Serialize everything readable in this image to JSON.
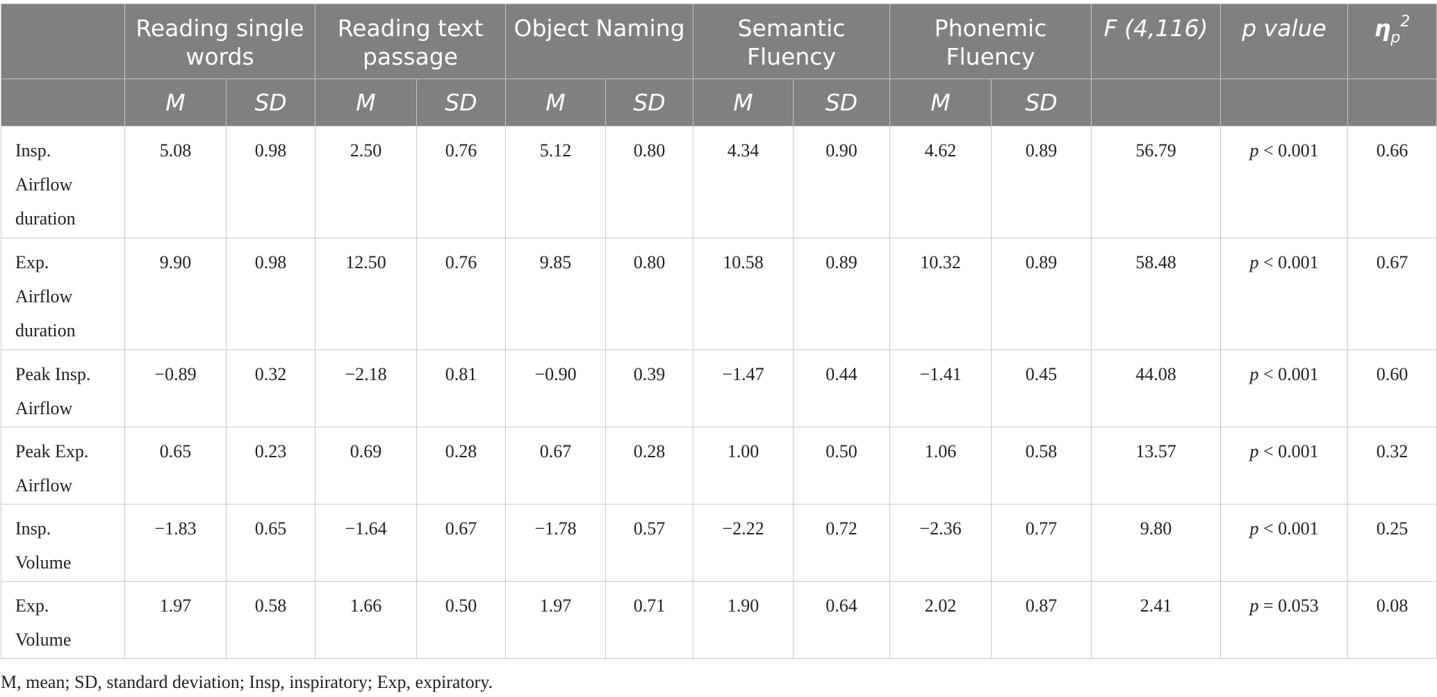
{
  "table": {
    "group_headers": {
      "reading_single_words": "Reading single words",
      "reading_text_passage": "Reading text passage",
      "object_naming": "Object Naming",
      "semantic_fluency": "Semantic Fluency",
      "phonemic_fluency": "Phonemic Fluency",
      "f_stat": "F (4,116)",
      "p_value": "p value",
      "eta_symbol": "η",
      "eta_subscript": "p",
      "eta_superscript": "2"
    },
    "sub_headers": [
      "M",
      "SD",
      "M",
      "SD",
      "M",
      "SD",
      "M",
      "SD",
      "M",
      "SD"
    ],
    "rows": [
      {
        "label": [
          "Insp.",
          "Airflow",
          "duration"
        ],
        "values": [
          "5.08",
          "0.98",
          "2.50",
          "0.76",
          "5.12",
          "0.80",
          "4.34",
          "0.90",
          "4.62",
          "0.89"
        ],
        "f": "56.79",
        "p_symbol": "p",
        "p_rest": " < 0.001",
        "eta": "0.66"
      },
      {
        "label": [
          "Exp.",
          "Airflow",
          "duration"
        ],
        "values": [
          "9.90",
          "0.98",
          "12.50",
          "0.76",
          "9.85",
          "0.80",
          "10.58",
          "0.89",
          "10.32",
          "0.89"
        ],
        "f": "58.48",
        "p_symbol": "p",
        "p_rest": " < 0.001",
        "eta": "0.67"
      },
      {
        "label": [
          "Peak Insp.",
          "Airflow"
        ],
        "values": [
          "−0.89",
          "0.32",
          "−2.18",
          "0.81",
          "−0.90",
          "0.39",
          "−1.47",
          "0.44",
          "−1.41",
          "0.45"
        ],
        "f": "44.08",
        "p_symbol": "p",
        "p_rest": " < 0.001",
        "eta": "0.60"
      },
      {
        "label": [
          "Peak Exp.",
          "Airflow"
        ],
        "values": [
          "0.65",
          "0.23",
          "0.69",
          "0.28",
          "0.67",
          "0.28",
          "1.00",
          "0.50",
          "1.06",
          "0.58"
        ],
        "f": "13.57",
        "p_symbol": "p",
        "p_rest": " < 0.001",
        "eta": "0.32"
      },
      {
        "label": [
          "Insp.",
          "Volume"
        ],
        "values": [
          "−1.83",
          "0.65",
          "−1.64",
          "0.67",
          "−1.78",
          "0.57",
          "−2.22",
          "0.72",
          "−2.36",
          "0.77"
        ],
        "f": "9.80",
        "p_symbol": "p",
        "p_rest": " < 0.001",
        "eta": "0.25"
      },
      {
        "label": [
          "Exp.",
          "Volume"
        ],
        "values": [
          "1.97",
          "0.58",
          "1.66",
          "0.50",
          "1.97",
          "0.71",
          "1.90",
          "0.64",
          "2.02",
          "0.87"
        ],
        "f": "2.41",
        "p_symbol": "p",
        "p_rest": " = 0.053",
        "eta": "0.08"
      }
    ]
  },
  "footnote": "M, mean; SD, standard deviation; Insp, inspiratory; Exp, expiratory.",
  "colors": {
    "header_bg": "#808080",
    "header_text": "#ffffff",
    "grid": "#c8c8c8",
    "body_text": "#222222"
  }
}
